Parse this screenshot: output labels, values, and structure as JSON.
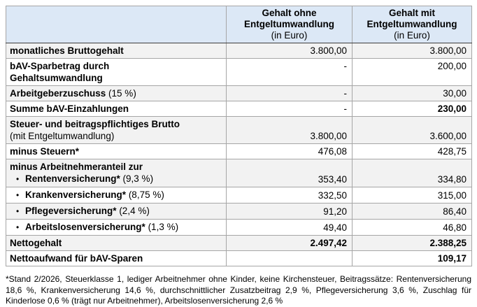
{
  "colors": {
    "header_bg": "#dce8f6",
    "alt_row_bg": "#f2f2f2",
    "border_inner": "#a6a6a6",
    "border_outer": "#616161",
    "header_divider": "#3d3d3d",
    "text": "#000000"
  },
  "table": {
    "header": {
      "col1": "",
      "col2": {
        "line1": "Gehalt ohne",
        "line2": "Entgeltumwandlung",
        "line3": "(in Euro)"
      },
      "col3": {
        "line1": "Gehalt mit",
        "line2": "Entgeltumwandlung",
        "line3": "(in Euro)"
      }
    },
    "rows": [
      {
        "bg": "alt",
        "lines": [
          {
            "spans": [
              {
                "t": "monatliches Bruttogehalt",
                "b": true
              }
            ]
          }
        ],
        "v1": {
          "t": "3.800,00",
          "b": false
        },
        "v2": {
          "t": "3.800,00",
          "b": false
        }
      },
      {
        "bg": "white",
        "valign": "top",
        "lines": [
          {
            "spans": [
              {
                "t": "bAV-Sparbetrag durch",
                "b": true
              }
            ]
          },
          {
            "spans": [
              {
                "t": "Gehaltsumwandlung",
                "b": true
              }
            ]
          }
        ],
        "v1": {
          "t": "-",
          "b": false
        },
        "v2": {
          "t": "200,00",
          "b": false
        }
      },
      {
        "bg": "alt",
        "lines": [
          {
            "spans": [
              {
                "t": "Arbeitgeberzuschuss",
                "b": true
              },
              {
                "t": " (15 %)",
                "b": false
              }
            ]
          }
        ],
        "v1": {
          "t": "-",
          "b": false
        },
        "v2": {
          "t": "30,00",
          "b": false
        }
      },
      {
        "bg": "white",
        "lines": [
          {
            "spans": [
              {
                "t": "Summe bAV-Einzahlungen",
                "b": true
              }
            ]
          }
        ],
        "v1": {
          "t": "-",
          "b": false
        },
        "v2": {
          "t": "230,00",
          "b": true
        }
      },
      {
        "bg": "alt",
        "valign": "bottom",
        "lines": [
          {
            "spans": [
              {
                "t": "Steuer- und beitragspflichtiges Brutto",
                "b": true
              }
            ]
          },
          {
            "spans": [
              {
                "t": "(mit Entgeltumwandlung)",
                "b": false
              }
            ]
          }
        ],
        "v1": {
          "t": "3.800,00",
          "b": false
        },
        "v2": {
          "t": "3.600,00",
          "b": false
        }
      },
      {
        "bg": "white",
        "lines": [
          {
            "spans": [
              {
                "t": "minus Steuern*",
                "b": true
              }
            ]
          }
        ],
        "v1": {
          "t": "476,08",
          "b": false
        },
        "v2": {
          "t": "428,75",
          "b": false
        }
      },
      {
        "bg": "alt",
        "valign": "bottom",
        "lines": [
          {
            "spans": [
              {
                "t": "minus Arbeitnehmeranteil zur",
                "b": true
              }
            ]
          },
          {
            "bullet": true,
            "spans": [
              {
                "t": "Rentenversicherung*",
                "b": true
              },
              {
                "t": " (9,3 %)",
                "b": false
              }
            ]
          }
        ],
        "v1": {
          "t": "353,40",
          "b": false
        },
        "v2": {
          "t": "334,80",
          "b": false
        }
      },
      {
        "bg": "white",
        "lines": [
          {
            "bullet": true,
            "spans": [
              {
                "t": "Krankenversicherung*",
                "b": true
              },
              {
                "t": " (8,75 %)",
                "b": false
              }
            ]
          }
        ],
        "v1": {
          "t": "332,50",
          "b": false
        },
        "v2": {
          "t": "315,00",
          "b": false
        }
      },
      {
        "bg": "alt",
        "lines": [
          {
            "bullet": true,
            "spans": [
              {
                "t": "Pflegeversicherung*",
                "b": true
              },
              {
                "t": " (2,4 %)",
                "b": false
              }
            ]
          }
        ],
        "v1": {
          "t": "91,20",
          "b": false
        },
        "v2": {
          "t": "86,40",
          "b": false
        }
      },
      {
        "bg": "white",
        "lines": [
          {
            "bullet": true,
            "spans": [
              {
                "t": "Arbeitslosenversicherung*",
                "b": true
              },
              {
                "t": " (1,3 %)",
                "b": false
              }
            ]
          }
        ],
        "v1": {
          "t": "49,40",
          "b": false
        },
        "v2": {
          "t": "46,80",
          "b": false
        }
      },
      {
        "bg": "alt",
        "lines": [
          {
            "spans": [
              {
                "t": "Nettogehalt",
                "b": true
              }
            ]
          }
        ],
        "v1": {
          "t": "2.497,42",
          "b": true
        },
        "v2": {
          "t": "2.388,25",
          "b": true
        }
      },
      {
        "bg": "white",
        "lines": [
          {
            "spans": [
              {
                "t": "Nettoaufwand für bAV-Sparen",
                "b": true
              }
            ]
          }
        ],
        "v1": {
          "t": "",
          "b": false
        },
        "v2": {
          "t": "109,17",
          "b": true
        }
      }
    ]
  },
  "footnote": "*Stand 2/2026, Steuerklasse 1, lediger Arbeitnehmer ohne Kinder, keine Kirchensteuer, Beitragssätze: Rentenversicherung 18,6 %, Krankenversicherung 14,6 %, durchschnittlicher Zusatzbeitrag 2,9 %, Pflegeversicherung 3,6 %, Zuschlag für Kinderlose 0,6 % (trägt nur Arbeitnehmer), Arbeitslosenversicherung 2,6 %"
}
